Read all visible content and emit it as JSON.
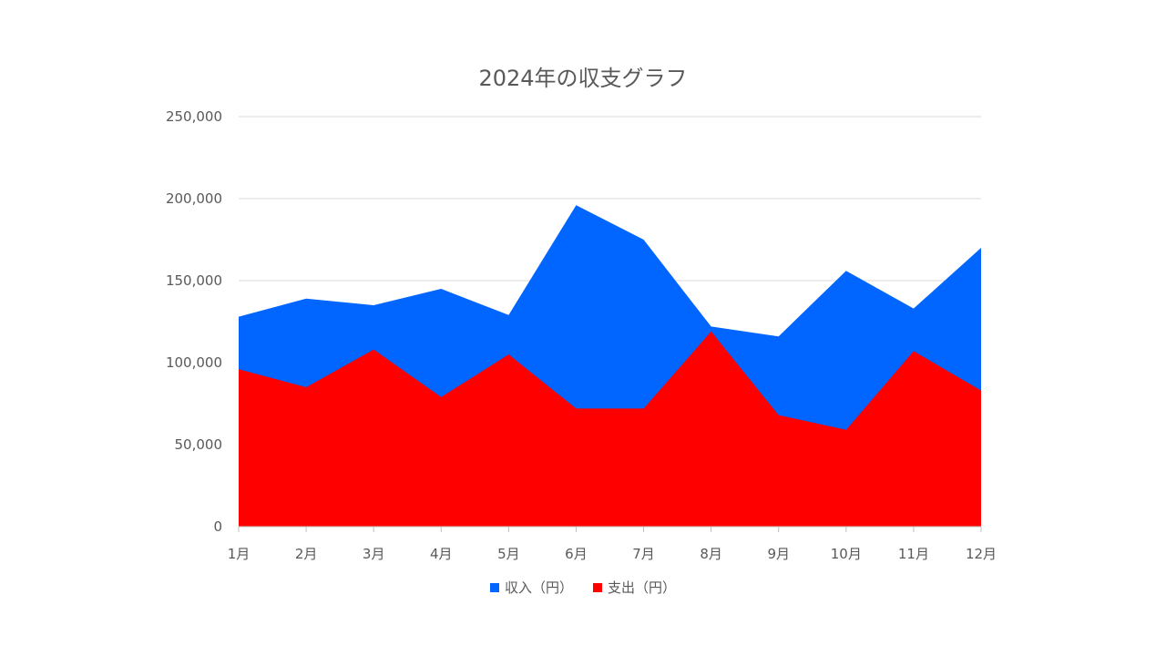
{
  "chart_data": {
    "type": "area",
    "title": "2024年の収支グラフ",
    "xlabel": "",
    "ylabel": "",
    "categories": [
      "1月",
      "2月",
      "3月",
      "4月",
      "5月",
      "6月",
      "7月",
      "8月",
      "9月",
      "10月",
      "11月",
      "12月"
    ],
    "series": [
      {
        "name": "収入（円）",
        "color": "#0066ff",
        "values": [
          128000,
          139000,
          135000,
          145000,
          129000,
          196000,
          175000,
          122000,
          116000,
          156000,
          133000,
          170000
        ]
      },
      {
        "name": "支出（円）",
        "color": "#ff0000",
        "values": [
          96000,
          85000,
          108000,
          79000,
          105000,
          72000,
          72000,
          119000,
          68000,
          59000,
          107000,
          83000
        ]
      }
    ],
    "ylim": [
      0,
      250000
    ],
    "yticks": [
      "0",
      "50,000",
      "100,000",
      "150,000",
      "200,000",
      "250,000"
    ],
    "ytick_values": [
      0,
      50000,
      100000,
      150000,
      200000,
      250000
    ],
    "grid": true,
    "legend_position": "bottom"
  }
}
